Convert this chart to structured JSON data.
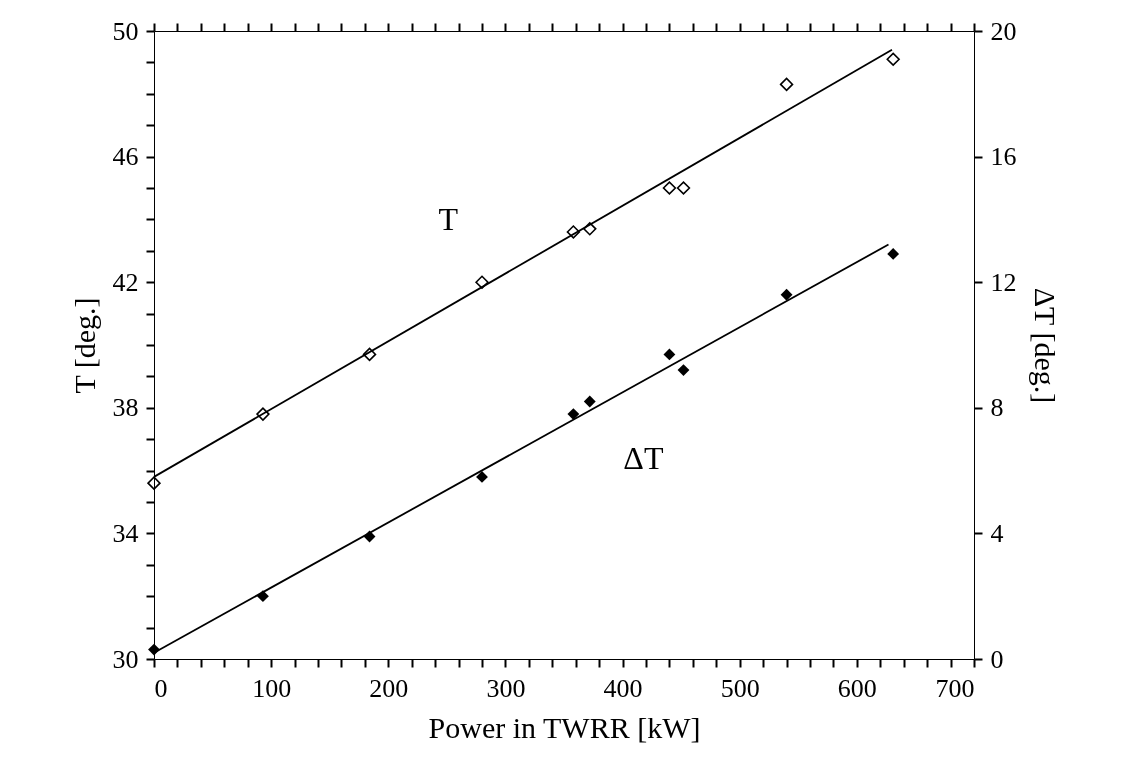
{
  "chart_data": {
    "type": "scatter",
    "xlabel": "Power in TWRR [kW]",
    "ylabel": "T [deg.]",
    "y2label": "ΔT [deg.]",
    "xlim": [
      0,
      700
    ],
    "ylim": [
      30,
      50
    ],
    "y2lim": [
      0,
      20
    ],
    "xticks": [
      0,
      {
        "value": 20,
        "label": null
      },
      {
        "value": 40,
        "label": null
      },
      {
        "value": 60,
        "label": null
      },
      {
        "value": 80,
        "label": null
      },
      100,
      {
        "value": 120,
        "label": null
      },
      {
        "value": 140,
        "label": null
      },
      {
        "value": 160,
        "label": null
      },
      {
        "value": 180,
        "label": null
      },
      200,
      {
        "value": 220,
        "label": null
      },
      {
        "value": 240,
        "label": null
      },
      {
        "value": 260,
        "label": null
      },
      {
        "value": 280,
        "label": null
      },
      300,
      {
        "value": 320,
        "label": null
      },
      {
        "value": 340,
        "label": null
      },
      {
        "value": 360,
        "label": null
      },
      {
        "value": 380,
        "label": null
      },
      400,
      {
        "value": 420,
        "label": null
      },
      {
        "value": 440,
        "label": null
      },
      {
        "value": 460,
        "label": null
      },
      {
        "value": 480,
        "label": null
      },
      500,
      {
        "value": 520,
        "label": null
      },
      {
        "value": 540,
        "label": null
      },
      {
        "value": 560,
        "label": null
      },
      {
        "value": 580,
        "label": null
      },
      600,
      {
        "value": 620,
        "label": null
      },
      {
        "value": 640,
        "label": null
      },
      {
        "value": 660,
        "label": null
      },
      {
        "value": 680,
        "label": null
      },
      700
    ],
    "yticks": [
      30,
      {
        "value": 31,
        "label": null
      },
      {
        "value": 32,
        "label": null
      },
      {
        "value": 33,
        "label": null
      },
      34,
      {
        "value": 35,
        "label": null
      },
      {
        "value": 36,
        "label": null
      },
      {
        "value": 37,
        "label": null
      },
      38,
      {
        "value": 39,
        "label": null
      },
      {
        "value": 40,
        "label": null
      },
      {
        "value": 41,
        "label": null
      },
      42,
      {
        "value": 43,
        "label": null
      },
      {
        "value": 44,
        "label": null
      },
      {
        "value": 45,
        "label": null
      },
      46,
      {
        "value": 47,
        "label": null
      },
      {
        "value": 48,
        "label": null
      },
      {
        "value": 49,
        "label": null
      },
      50
    ],
    "y2ticks": [
      0,
      4,
      8,
      12,
      16,
      20
    ],
    "grid": false,
    "series": [
      {
        "name": "T",
        "marker": "diamond",
        "color": "#000000",
        "x": [
          0,
          93,
          184,
          280,
          358,
          372,
          440,
          452,
          540,
          631
        ],
        "values": [
          35.6,
          37.8,
          39.7,
          42.0,
          43.6,
          43.7,
          45.0,
          45.0,
          48.3,
          49.1
        ]
      },
      {
        "type": "line",
        "marker": "none",
        "line_style": "solid",
        "color": "#000000",
        "x": [
          0,
          630
        ],
        "values": [
          35.8,
          49.4
        ]
      },
      {
        "name": "ΔT",
        "marker": "diamond",
        "axis": "y2",
        "color": "#000000",
        "x": [
          0,
          93,
          184,
          280,
          358,
          372,
          440,
          452,
          540,
          631
        ],
        "values": [
          0.3,
          2.0,
          3.9,
          5.8,
          7.8,
          8.2,
          9.7,
          9.2,
          11.6,
          12.9
        ]
      },
      {
        "type": "line",
        "marker": "none",
        "line_style": "solid",
        "axis": "y2",
        "color": "#000000",
        "x": [
          0,
          627
        ],
        "values": [
          0.2,
          13.2
        ]
      }
    ]
  }
}
